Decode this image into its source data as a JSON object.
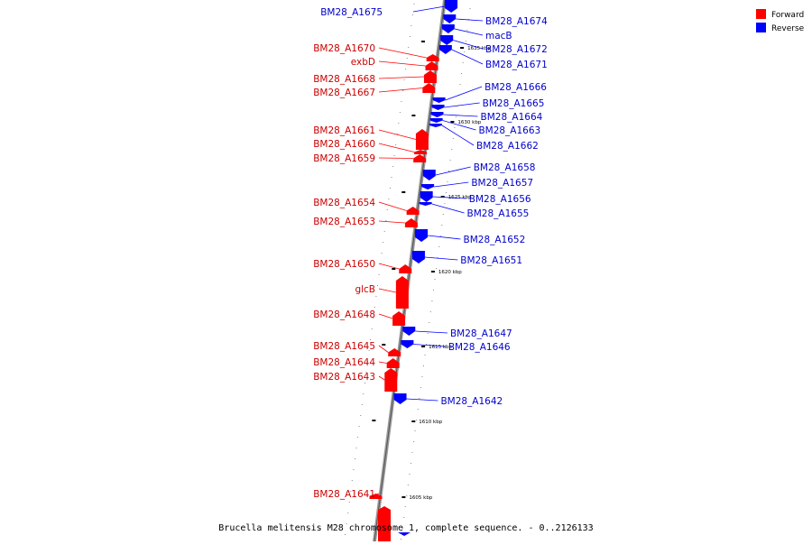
{
  "legend": {
    "forward_label": "Forward",
    "reverse_label": "Reverse",
    "forward_color": "#ff0000",
    "reverse_color": "#0000ff"
  },
  "caption": "Brucella melitensis M28 chromosome 1, complete sequence. - 0..2126133",
  "ticks": [
    "1635 kbp",
    "1630 kbp",
    "1625 kbp",
    "1620 kbp",
    "1615 kbp",
    "1610 kbp",
    "1605 kbp"
  ],
  "forward_genes": [
    "BM28_A1670",
    "exbD",
    "BM28_A1668",
    "BM28_A1667",
    "BM28_A1661",
    "BM28_A1660",
    "BM28_A1659",
    "BM28_A1654",
    "BM28_A1653",
    "BM28_A1650",
    "glcB",
    "BM28_A1648",
    "BM28_A1645",
    "BM28_A1644",
    "BM28_A1643",
    "BM28_A1641"
  ],
  "reverse_genes": [
    "BM28_A1675",
    "BM28_A1674",
    "macB",
    "BM28_A1672",
    "BM28_A1671",
    "BM28_A1666",
    "BM28_A1665",
    "BM28_A1664",
    "BM28_A1663",
    "BM28_A1662",
    "BM28_A1658",
    "BM28_A1657",
    "BM28_A1656",
    "BM28_A1655",
    "BM28_A1652",
    "BM28_A1651",
    "BM28_A1647",
    "BM28_A1646",
    "BM28_A1642"
  ]
}
